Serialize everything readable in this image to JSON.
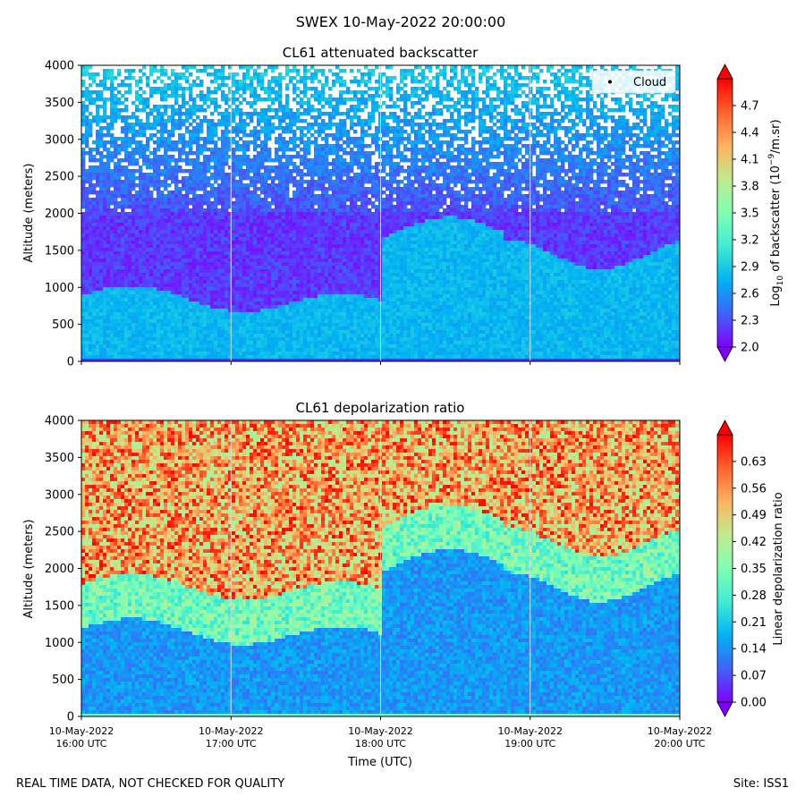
{
  "suptitle": "SWEX 10-May-2022 20:00:00",
  "footer": {
    "left": "REAL TIME DATA, NOT CHECKED FOR QUALITY",
    "right": "Site: ISS1"
  },
  "chart_data": [
    {
      "type": "heatmap",
      "title": "CL61 attenuated backscatter",
      "xlabel": "",
      "ylabel": "Altitude (meters)",
      "ylim": [
        0,
        4000
      ],
      "yticks": [
        "0",
        "500",
        "1000",
        "1500",
        "2000",
        "2500",
        "3000",
        "3500",
        "4000"
      ],
      "legend": {
        "label": "Cloud",
        "placement": "top-right"
      },
      "colorbar": {
        "label_prefix": "Log",
        "label_sub": "10",
        "label_mid": " of backscatter (10",
        "label_sup": "−9",
        "label_suffix": "/m.sr)",
        "range": [
          2.0,
          5.0
        ],
        "ticks": [
          "2.0",
          "2.3",
          "2.6",
          "2.9",
          "3.2",
          "3.5",
          "3.8",
          "4.1",
          "4.4",
          "4.7"
        ],
        "cmap": "rainbow"
      }
    },
    {
      "type": "heatmap",
      "title": "CL61 depolarization ratio",
      "xlabel": "Time (UTC)",
      "ylabel": "Altitude (meters)",
      "ylim": [
        0,
        4000
      ],
      "yticks": [
        "0",
        "500",
        "1000",
        "1500",
        "2000",
        "2500",
        "3000",
        "3500",
        "4000"
      ],
      "xticks": [
        [
          "10-May-2022",
          "16:00 UTC"
        ],
        [
          "10-May-2022",
          "17:00 UTC"
        ],
        [
          "10-May-2022",
          "18:00 UTC"
        ],
        [
          "10-May-2022",
          "19:00 UTC"
        ],
        [
          "10-May-2022",
          "20:00 UTC"
        ]
      ],
      "colorbar": {
        "label": "Linear depolarization ratio",
        "range": [
          0.0,
          0.7
        ],
        "ticks": [
          "0.00",
          "0.07",
          "0.14",
          "0.21",
          "0.28",
          "0.35",
          "0.42",
          "0.49",
          "0.56",
          "0.63"
        ],
        "cmap": "rainbow"
      }
    }
  ]
}
